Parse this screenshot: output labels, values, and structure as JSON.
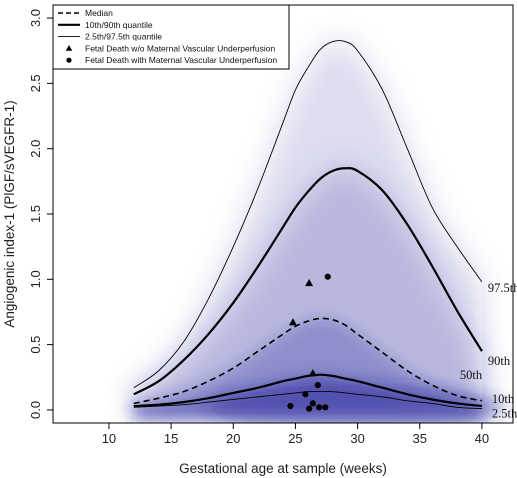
{
  "chart_data": {
    "type": "line",
    "xlabel": "Gestational age at sample (weeks)",
    "ylabel": "Angiogenic index-1 (PlGF/sVEGFR-1)",
    "xlim": [
      5.5,
      42.5
    ],
    "ylim": [
      -0.1,
      3.1
    ],
    "x_ticks": [
      10,
      15,
      20,
      25,
      30,
      35,
      40
    ],
    "y_ticks": [
      0.0,
      0.5,
      1.0,
      1.5,
      2.0,
      2.5,
      3.0
    ],
    "x_tick_labels": [
      "10",
      "15",
      "20",
      "25",
      "30",
      "35",
      "40"
    ],
    "y_tick_labels": [
      "0.0",
      "0.5",
      "1.0",
      "1.5",
      "2.0",
      "2.5",
      "3.0"
    ],
    "legend_position": "top-left",
    "x": [
      12,
      14,
      16,
      18,
      20,
      22,
      24,
      25,
      26,
      27,
      28,
      29,
      30,
      32,
      34,
      36,
      38,
      40
    ],
    "series": [
      {
        "name": "2.5th/97.5th quantile",
        "label": "2.5th",
        "style": "thin",
        "values": [
          0.02,
          0.03,
          0.04,
          0.06,
          0.08,
          0.1,
          0.12,
          0.13,
          0.14,
          0.14,
          0.14,
          0.13,
          0.12,
          0.1,
          0.07,
          0.05,
          0.02,
          0.01
        ]
      },
      {
        "name": "10th/90th quantile",
        "label": "10th",
        "style": "thick",
        "values": [
          0.03,
          0.04,
          0.06,
          0.09,
          0.13,
          0.17,
          0.22,
          0.24,
          0.26,
          0.27,
          0.26,
          0.24,
          0.22,
          0.17,
          0.12,
          0.08,
          0.05,
          0.03
        ]
      },
      {
        "name": "Median",
        "label": "50th",
        "style": "dashed",
        "values": [
          0.05,
          0.09,
          0.14,
          0.22,
          0.32,
          0.45,
          0.58,
          0.64,
          0.68,
          0.7,
          0.69,
          0.65,
          0.58,
          0.44,
          0.3,
          0.19,
          0.11,
          0.07
        ]
      },
      {
        "name": "10th/90th quantile",
        "label": "90th",
        "style": "thick",
        "values": [
          0.12,
          0.22,
          0.38,
          0.58,
          0.82,
          1.1,
          1.4,
          1.55,
          1.67,
          1.77,
          1.83,
          1.85,
          1.83,
          1.68,
          1.42,
          1.1,
          0.76,
          0.45
        ]
      },
      {
        "name": "2.5th/97.5th quantile",
        "label": "97.5th",
        "style": "thin",
        "values": [
          0.17,
          0.3,
          0.52,
          0.85,
          1.25,
          1.7,
          2.2,
          2.45,
          2.62,
          2.76,
          2.82,
          2.82,
          2.75,
          2.45,
          2.0,
          1.55,
          1.25,
          0.98
        ]
      }
    ],
    "points_without_mvu": {
      "name": "Fetal Death w/o Maternal Vascular Underperfusion",
      "marker": "triangle",
      "x": [
        24.8,
        26.1,
        26.4
      ],
      "y": [
        0.67,
        0.97,
        0.28
      ]
    },
    "points_with_mvu": {
      "name": "Fetal Death with Maternal Vascular Underperfusion",
      "marker": "circle",
      "x": [
        24.6,
        25.8,
        26.1,
        26.4,
        26.8,
        26.9,
        27.4,
        27.6
      ],
      "y": [
        0.03,
        0.12,
        0.01,
        0.05,
        0.19,
        0.02,
        0.02,
        1.02
      ]
    },
    "legend": [
      {
        "label": "Median",
        "style": "dashed"
      },
      {
        "label": "10th/90th quantile",
        "style": "thick"
      },
      {
        "label": "2.5th/97.5th quantile",
        "style": "thin"
      },
      {
        "label": "Fetal Death w/o Maternal Vascular Underperfusion",
        "style": "triangle"
      },
      {
        "label": "Fetal Death with Maternal Vascular Underperfusion",
        "style": "circle"
      }
    ],
    "colors": {
      "density": "#2a2a9e",
      "line": "#000000"
    }
  }
}
